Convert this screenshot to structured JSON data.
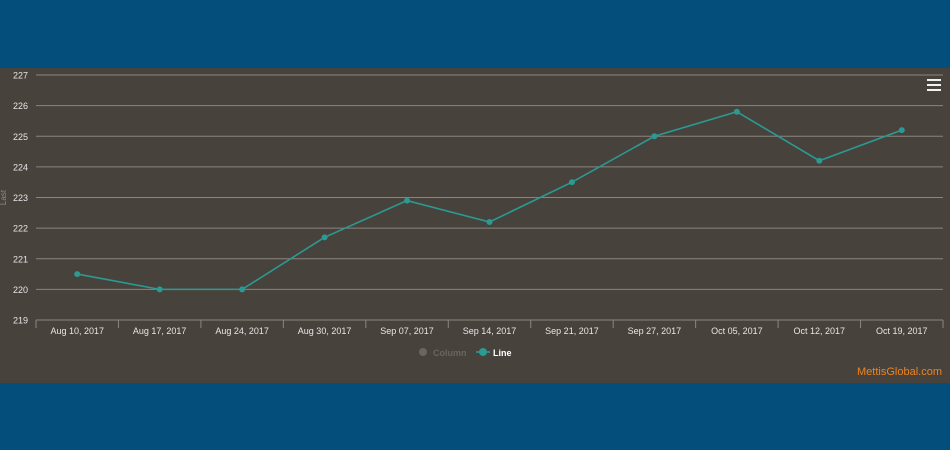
{
  "menu": {
    "icon": "hamburger-menu-icon"
  },
  "credit": "MettisGlobal.com",
  "colors": {
    "page_bg": "#034e7a",
    "panel_bg": "#48423d",
    "grid": "#8a8580",
    "axis_text": "#e6e6e6",
    "line": "#2a9a92",
    "legend_inactive": "#6a655f",
    "credit": "#f0831c"
  },
  "chart_data": {
    "type": "line",
    "ylabel": "Last",
    "xlabel": "",
    "title": "",
    "ylim": [
      219,
      227
    ],
    "yticks": [
      219,
      220,
      221,
      222,
      223,
      224,
      225,
      226,
      227
    ],
    "grid": true,
    "legend_placement": "bottom-center",
    "categories": [
      "Aug 10, 2017",
      "Aug 17, 2017",
      "Aug 24, 2017",
      "Aug 30, 2017",
      "Sep 07, 2017",
      "Sep 14, 2017",
      "Sep 21, 2017",
      "Sep 27, 2017",
      "Oct 05, 2017",
      "Oct 12, 2017",
      "Oct 19, 2017"
    ],
    "legend": [
      {
        "name": "Column",
        "active": false,
        "color": "#6a655f"
      },
      {
        "name": "Line",
        "active": true,
        "color": "#2a9a92"
      }
    ],
    "series": [
      {
        "name": "Line",
        "type": "line",
        "values": [
          220.5,
          220.0,
          220.0,
          221.7,
          222.9,
          222.2,
          223.5,
          225.0,
          225.8,
          224.2,
          225.2
        ]
      }
    ]
  }
}
